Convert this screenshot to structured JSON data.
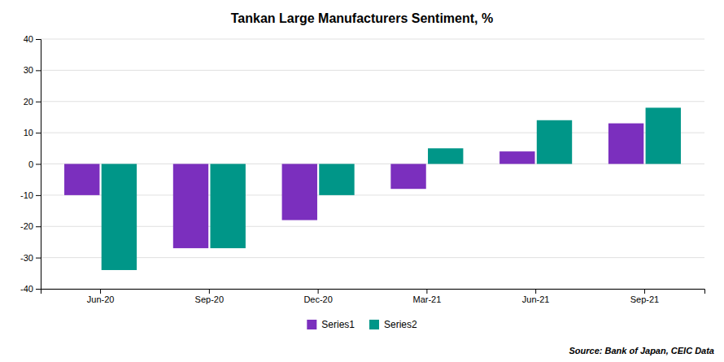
{
  "chart_data": {
    "type": "bar",
    "title": "Tankan Large Manufacturers Sentiment, %",
    "categories": [
      "Jun-20",
      "Sep-20",
      "Dec-20",
      "Mar-21",
      "Jun-21",
      "Sep-21"
    ],
    "series": [
      {
        "name": "Series1",
        "color": "#7B2FBE",
        "values": [
          -10,
          -27,
          -18,
          -8,
          4,
          13
        ]
      },
      {
        "name": "Series2",
        "color": "#009688",
        "values": [
          -34,
          -27,
          -10,
          5,
          14,
          18
        ]
      }
    ],
    "ylim": [
      -40,
      40
    ],
    "yticks": [
      -40,
      -30,
      -20,
      -10,
      0,
      10,
      20,
      30,
      40
    ],
    "grid": true,
    "legend": "bottom",
    "annotations": [
      "Source: Bank of Japan, CEIC Data"
    ]
  }
}
